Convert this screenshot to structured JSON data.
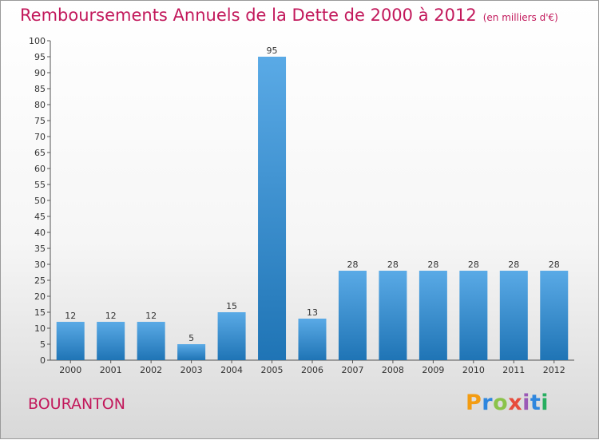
{
  "header": {
    "title": "Remboursements Annuels de la Dette de 2000 à 2012",
    "unit_note": "(en milliers d'€)"
  },
  "footer": {
    "place": "BOURANTON",
    "logo_text": "Proxiti"
  },
  "colors": {
    "title": "#c2185b",
    "bar_light": "#5aaae6",
    "bar_dark": "#1f74b5",
    "logo": [
      "#f39c12",
      "#2e86de",
      "#8bc34a",
      "#e74c3c",
      "#9b59b6",
      "#2e86de",
      "#27ae60"
    ]
  },
  "chart_data": {
    "type": "bar",
    "categories": [
      "2000",
      "2001",
      "2002",
      "2003",
      "2004",
      "2005",
      "2006",
      "2007",
      "2008",
      "2009",
      "2010",
      "2011",
      "2012"
    ],
    "values": [
      12,
      12,
      12,
      5,
      15,
      95,
      13,
      28,
      28,
      28,
      28,
      28,
      28
    ],
    "ylim": [
      0,
      100
    ],
    "ytick_step": 5,
    "grid": false,
    "legend": "none",
    "data_labels": true
  }
}
